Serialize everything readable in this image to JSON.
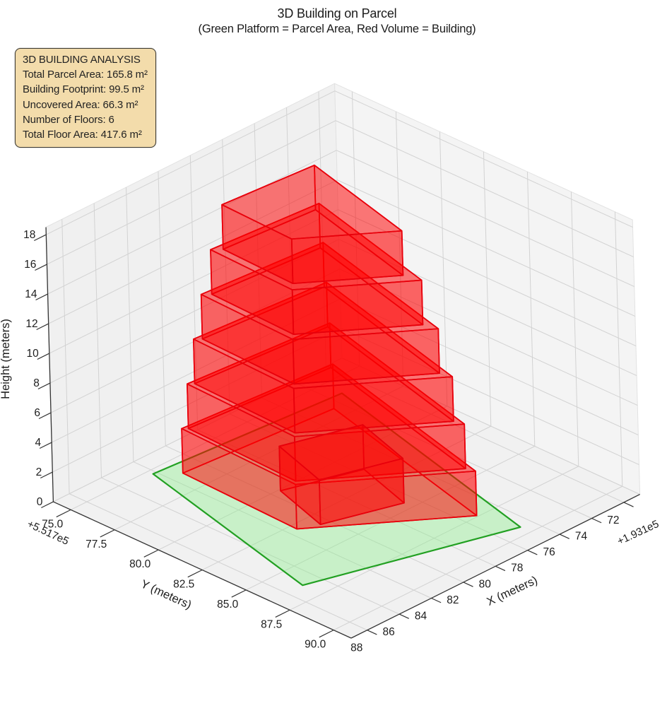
{
  "title": {
    "line1": "3D Building on Parcel",
    "line2": "(Green Platform = Parcel Area, Red Volume = Building)"
  },
  "info_box": {
    "title": "3D BUILDING ANALYSIS",
    "lines": [
      "Total Parcel Area: 165.8 m²",
      "Building Footprint: 99.5 m²",
      "Uncovered Area: 66.3 m²",
      "Number of Floors: 6",
      "Total Floor Area: 417.6 m²"
    ]
  },
  "chart_data": {
    "type": "3d-building-extrusion",
    "stats": {
      "total_parcel_area_m2": 165.8,
      "building_footprint_m2": 99.5,
      "uncovered_area_m2": 66.3,
      "number_of_floors": 6,
      "total_floor_area_m2": 417.6,
      "floor_height_m": 3
    },
    "axes": {
      "x": {
        "label": "X (meters)",
        "offset_text": "+1.931e5",
        "tick_labels": [
          "72",
          "74",
          "76",
          "78",
          "80",
          "82",
          "84",
          "86",
          "88"
        ],
        "range": [
          71,
          89
        ]
      },
      "y": {
        "label": "Y (meters)",
        "offset_text": "+5.517e5",
        "tick_labels": [
          "75.0",
          "77.5",
          "80.0",
          "82.5",
          "85.0",
          "87.5",
          "90.0"
        ],
        "range": [
          74,
          91
        ]
      },
      "z": {
        "label": "Height (meters)",
        "offset_text": "",
        "tick_labels": [
          "0",
          "2",
          "4",
          "6",
          "8",
          "10",
          "12",
          "14",
          "16",
          "18"
        ],
        "range": [
          0,
          18.5
        ]
      },
      "grid": true
    },
    "parcel": {
      "name": "parcel-platform",
      "polygon": [
        [
          84.2,
          75.3
        ],
        [
          73.3,
          76.1
        ],
        [
          76.7,
          89.4
        ],
        [
          87.0,
          86.4
        ]
      ],
      "z": 0
    },
    "building": {
      "name": "building-volume",
      "volumes": [
        {
          "floor": 1,
          "z0": 0,
          "z1": 3,
          "polygon": [
            [
              83.26,
              76.14
            ],
            [
              74.54,
              76.78
            ],
            [
              77.26,
              87.42
            ],
            [
              83.5,
              82.86
            ]
          ]
        },
        {
          "floor": 2,
          "z0": 3,
          "z1": 6,
          "polygon": [
            [
              83.05,
              76.33
            ],
            [
              74.82,
              76.93
            ],
            [
              77.39,
              86.97
            ],
            [
              83.28,
              82.67
            ]
          ]
        },
        {
          "floor": 3,
          "z0": 6,
          "z1": 9,
          "polygon": [
            [
              82.81,
              76.54
            ],
            [
              75.13,
              77.1
            ],
            [
              77.53,
              86.48
            ],
            [
              83.03,
              82.46
            ]
          ]
        },
        {
          "floor": 4,
          "z0": 9,
          "z1": 12,
          "polygon": [
            [
              82.53,
              76.79
            ],
            [
              75.5,
              77.31
            ],
            [
              77.69,
              85.89
            ],
            [
              82.73,
              82.21
            ]
          ]
        },
        {
          "floor": 5,
          "z0": 12,
          "z1": 15,
          "polygon": [
            [
              82.2,
              77.09
            ],
            [
              75.94,
              77.55
            ],
            [
              77.89,
              85.19
            ],
            [
              82.38,
              81.92
            ]
          ]
        },
        {
          "floor": 6,
          "z0": 15,
          "z1": 18,
          "polygon": [
            [
              81.8,
              77.44
            ],
            [
              76.46,
              77.83
            ],
            [
              78.13,
              84.35
            ],
            [
              81.95,
              81.56
            ]
          ]
        },
        {
          "floor": 1,
          "z0": 0,
          "z1": 3,
          "polygon": [
            [
              82.5,
              83.3
            ],
            [
              78.6,
              84.5
            ],
            [
              77.6,
              81.3
            ],
            [
              81.5,
              80.1
            ]
          ]
        }
      ]
    },
    "colors": {
      "building_edge": "#e8000b",
      "building_face_side": "rgba(255,0,0,0.36)",
      "building_face_top": "rgba(255,0,0,0.25)",
      "parcel_edge": "#22a022",
      "parcel_face": "rgba(144,238,144,0.42)",
      "pane_left": "#f0f0f0",
      "pane_right": "#f4f4f4",
      "pane_bottom": "#f1f1f1",
      "grid": "#d2d2d2",
      "spine": "#333333",
      "info_box_bg": "#f3dcab",
      "info_box_border": "#3d3a32"
    }
  }
}
